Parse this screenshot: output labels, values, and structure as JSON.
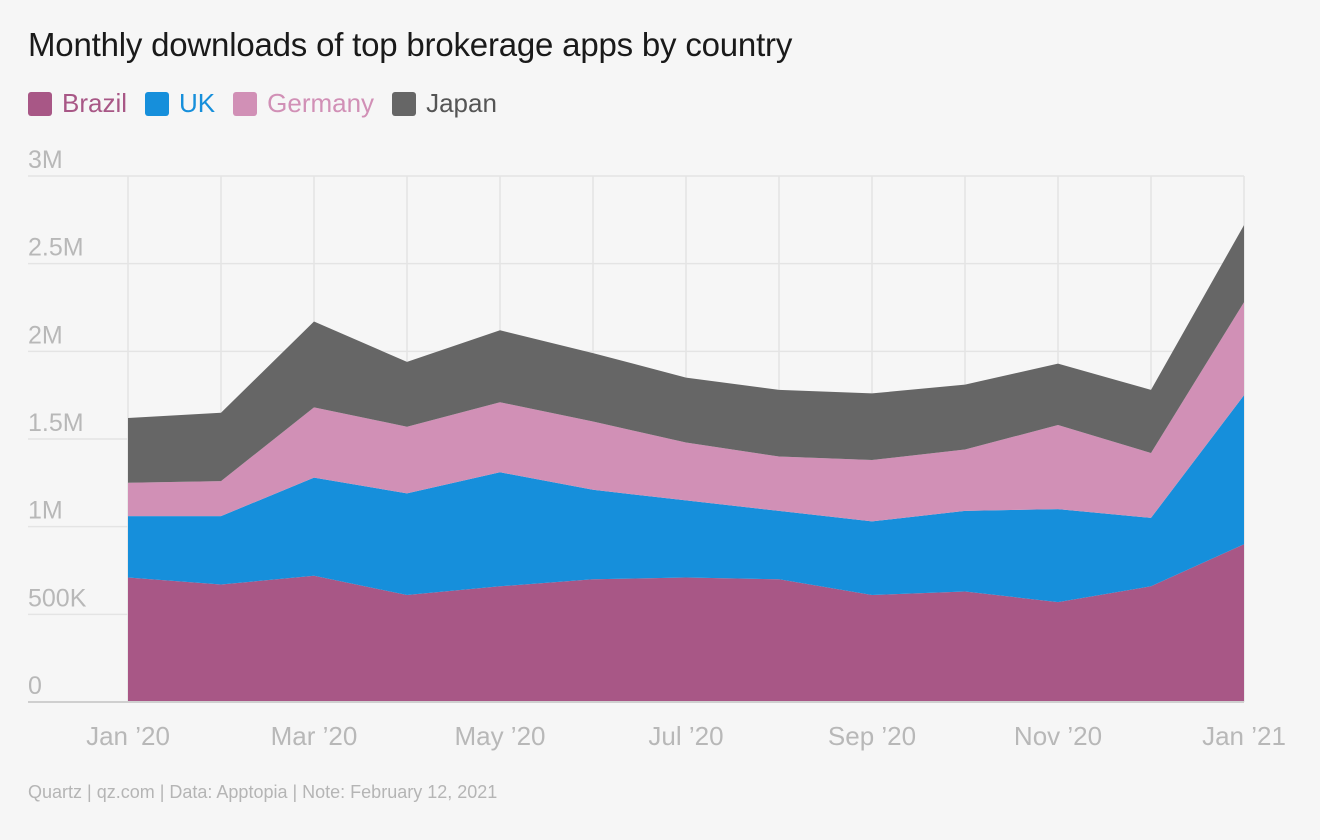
{
  "title": "Monthly downloads of top brokerage apps by country",
  "source_note": "Quartz | qz.com | Data: Apptopia | Note: February 12, 2021",
  "chart_data": {
    "type": "area",
    "stacked": true,
    "title": "Monthly downloads of top brokerage apps by country",
    "x": [
      "2020-01",
      "2020-02",
      "2020-03",
      "2020-04",
      "2020-05",
      "2020-06",
      "2020-07",
      "2020-08",
      "2020-09",
      "2020-10",
      "2020-11",
      "2020-12",
      "2021-01"
    ],
    "x_tick_labels": [
      "Jan ’20",
      "Mar ’20",
      "May ’20",
      "Jul ’20",
      "Sep ’20",
      "Nov ’20",
      "Jan ’21"
    ],
    "x_tick_indices": [
      0,
      2,
      4,
      6,
      8,
      10,
      12
    ],
    "y_ticks": [
      0,
      500000,
      1000000,
      1500000,
      2000000,
      2500000,
      3000000
    ],
    "y_tick_labels": [
      "0",
      "500K",
      "1M",
      "1.5M",
      "2M",
      "2.5M",
      "3M"
    ],
    "ylim": [
      0,
      3000000
    ],
    "grid": true,
    "legend_position": "top-left",
    "series": [
      {
        "name": "Brazil",
        "color": "#a85786",
        "values": [
          710000,
          670000,
          720000,
          610000,
          660000,
          700000,
          710000,
          700000,
          610000,
          630000,
          570000,
          660000,
          900000
        ]
      },
      {
        "name": "UK",
        "color": "#168fdb",
        "values": [
          350000,
          390000,
          560000,
          580000,
          650000,
          510000,
          440000,
          390000,
          420000,
          460000,
          530000,
          390000,
          850000
        ]
      },
      {
        "name": "Germany",
        "color": "#d190b6",
        "values": [
          190000,
          200000,
          400000,
          380000,
          400000,
          390000,
          330000,
          310000,
          350000,
          350000,
          480000,
          370000,
          530000
        ]
      },
      {
        "name": "Japan",
        "color": "#666666",
        "values": [
          370000,
          390000,
          490000,
          370000,
          410000,
          390000,
          370000,
          380000,
          380000,
          370000,
          350000,
          360000,
          440000
        ]
      }
    ]
  }
}
